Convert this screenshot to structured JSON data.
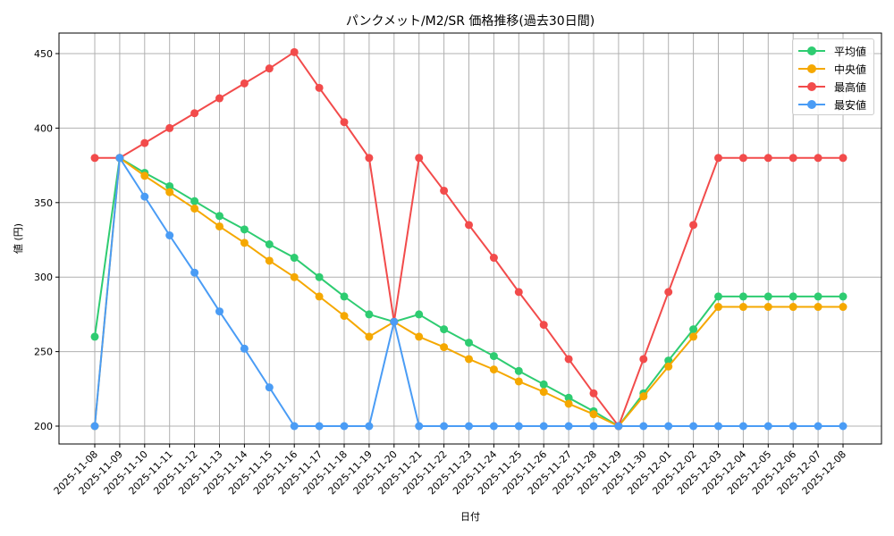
{
  "chart_data": {
    "type": "line",
    "title": "パンクメット/M2/SR 価格推移(過去30日間)",
    "xlabel": "日付",
    "ylabel": "値 (円)",
    "ylim": [
      187,
      464
    ],
    "yticks": [
      200,
      250,
      300,
      350,
      400,
      450
    ],
    "grid": true,
    "legend_position": "upper right",
    "categories": [
      "2025-11-08",
      "2025-11-09",
      "2025-11-10",
      "2025-11-11",
      "2025-11-12",
      "2025-11-13",
      "2025-11-14",
      "2025-11-15",
      "2025-11-16",
      "2025-11-17",
      "2025-11-18",
      "2025-11-19",
      "2025-11-20",
      "2025-11-21",
      "2025-11-22",
      "2025-11-23",
      "2025-11-24",
      "2025-11-25",
      "2025-11-26",
      "2025-11-27",
      "2025-11-28",
      "2025-11-29",
      "2025-11-30",
      "2025-12-01",
      "2025-12-02",
      "2025-12-03",
      "2025-12-04",
      "2025-12-05",
      "2025-12-06",
      "2025-12-07",
      "2025-12-08"
    ],
    "series": [
      {
        "name": "平均値",
        "color": "#2ecc71",
        "values": [
          260,
          380,
          370,
          361,
          351,
          341,
          332,
          322,
          313,
          300,
          287,
          275,
          270,
          275,
          265,
          256,
          247,
          237,
          228,
          219,
          210,
          200,
          222,
          244,
          265,
          287,
          287,
          287,
          287,
          287,
          287
        ]
      },
      {
        "name": "中央値",
        "color": "#f5a800",
        "values": [
          200,
          380,
          368,
          357,
          346,
          334,
          323,
          311,
          300,
          287,
          274,
          260,
          270,
          260,
          253,
          245,
          238,
          230,
          223,
          215,
          208,
          200,
          220,
          240,
          260,
          280,
          280,
          280,
          280,
          280,
          280
        ]
      },
      {
        "name": "最高値",
        "color": "#f24b4b",
        "values": [
          380,
          380,
          390,
          400,
          410,
          420,
          430,
          440,
          451,
          427,
          404,
          380,
          270,
          380,
          358,
          335,
          313,
          290,
          268,
          245,
          222,
          200,
          245,
          290,
          335,
          380,
          380,
          380,
          380,
          380,
          380
        ]
      },
      {
        "name": "最安値",
        "color": "#4a9cf5",
        "values": [
          200,
          380,
          354,
          328,
          303,
          277,
          252,
          226,
          200,
          200,
          200,
          200,
          270,
          200,
          200,
          200,
          200,
          200,
          200,
          200,
          200,
          200,
          200,
          200,
          200,
          200,
          200,
          200,
          200,
          200,
          200
        ]
      }
    ]
  }
}
